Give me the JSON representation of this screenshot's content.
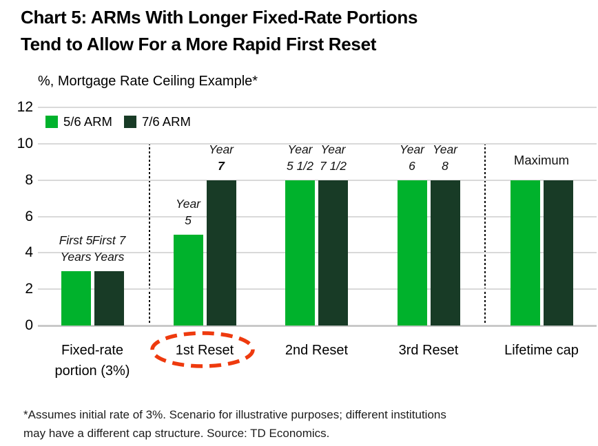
{
  "figure": {
    "title_line1": "Chart 5: ARMs With Longer Fixed-Rate Portions",
    "title_line2": "Tend to Allow For a More Rapid First Reset",
    "axis_title": "%, Mortgage Rate Ceiling Example*",
    "footnote_line1": "*Assumes initial rate of 3%. Scenario for illustrative purposes; different institutions",
    "footnote_line2": "may have a different cap structure. Source: TD Economics."
  },
  "colors": {
    "series_5_6_arm": "#00b22c",
    "series_7_6_arm": "#183b26",
    "gridline": "#d9d9d9",
    "highlight_ellipse": "#ee3a0e",
    "separator": "#000000"
  },
  "chart_data": {
    "type": "bar",
    "title": "%, Mortgage Rate Ceiling Example*",
    "categories": [
      "Fixed-rate portion (3%)",
      "1st Reset",
      "2nd Reset",
      "3rd Reset",
      "Lifetime cap"
    ],
    "series": [
      {
        "name": "5/6 ARM",
        "color": "#00b22c",
        "values": [
          3,
          5,
          8,
          8,
          8
        ]
      },
      {
        "name": "7/6 ARM",
        "color": "#183b26",
        "values": [
          3,
          8,
          8,
          8,
          8
        ]
      }
    ],
    "bar_labels": [
      [
        {
          "line1": "First 5",
          "line2": "Years"
        },
        {
          "line1": "First 7",
          "line2": "Years"
        }
      ],
      [
        {
          "line1": "Year",
          "line2": "5"
        },
        {
          "line1": "Year",
          "line2": "7",
          "bold": true
        }
      ],
      [
        {
          "line1": "Year",
          "line2": "5 1/2"
        },
        {
          "line1": "Year",
          "line2": "7 1/2"
        }
      ],
      [
        {
          "line1": "Year",
          "line2": "6"
        },
        {
          "line1": "Year",
          "line2": "8"
        }
      ],
      [
        null,
        null
      ]
    ],
    "group_label_lifetime_cap": "Maximum",
    "ylabel": "%",
    "ylim": [
      0,
      12
    ],
    "yticks": [
      0,
      2,
      4,
      6,
      8,
      10,
      12
    ],
    "grid": "horizontal",
    "legend_position": "top-left",
    "annotations": {
      "separator_lines_between": [
        [
          "Fixed-rate portion (3%)",
          "1st Reset"
        ],
        [
          "3rd Reset",
          "Lifetime cap"
        ]
      ],
      "dashed_ellipse_around_category": "1st Reset"
    }
  },
  "legend": {
    "items": [
      {
        "label": "5/6 ARM"
      },
      {
        "label": "7/6 ARM"
      }
    ]
  }
}
